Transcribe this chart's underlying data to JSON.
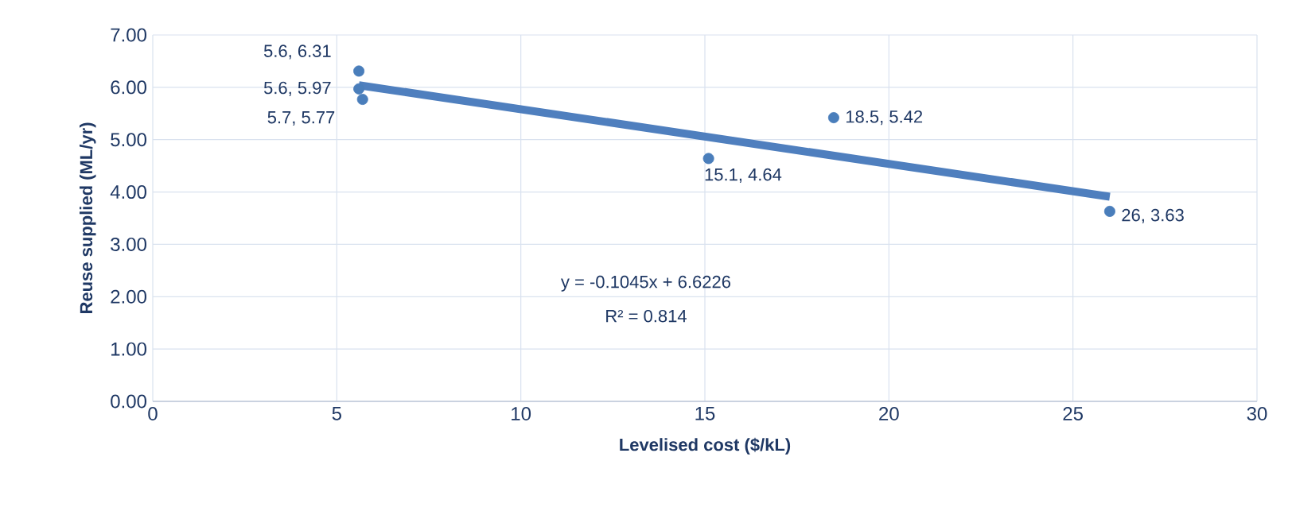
{
  "chart_data": {
    "type": "scatter",
    "xlabel": "Levelised cost ($/kL)",
    "ylabel": "Reuse supplied (ML/yr)",
    "xlim": [
      0,
      30
    ],
    "ylim": [
      0,
      7
    ],
    "xticks": [
      0,
      5,
      10,
      15,
      20,
      25,
      30
    ],
    "yticks": [
      {
        "value": 0,
        "label": "0.00"
      },
      {
        "value": 1,
        "label": "1.00"
      },
      {
        "value": 2,
        "label": "2.00"
      },
      {
        "value": 3,
        "label": "3.00"
      },
      {
        "value": 4,
        "label": "4.00"
      },
      {
        "value": 5,
        "label": "5.00"
      },
      {
        "value": 6,
        "label": "6.00"
      },
      {
        "value": 7,
        "label": "7.00"
      }
    ],
    "grid": true,
    "annotations": [
      "y = -0.1045x + 6.6226",
      "R² = 0.814"
    ],
    "series": [
      {
        "type": "line",
        "color": "#4f7fbe",
        "x": [
          5.6,
          26
        ],
        "values": [
          6.04,
          3.91
        ]
      },
      {
        "type": "scatter",
        "color": "#4a7ebb",
        "x": [
          5.6,
          5.6,
          5.7,
          15.1,
          18.5,
          26
        ],
        "values": [
          6.31,
          5.97,
          5.77,
          4.64,
          5.42,
          3.63
        ],
        "value_labels": [
          "5.6, 6.31",
          "5.6, 5.97",
          "5.7, 5.77",
          "15.1, 4.64",
          "18.5, 5.42",
          "26, 3.63"
        ]
      }
    ]
  }
}
